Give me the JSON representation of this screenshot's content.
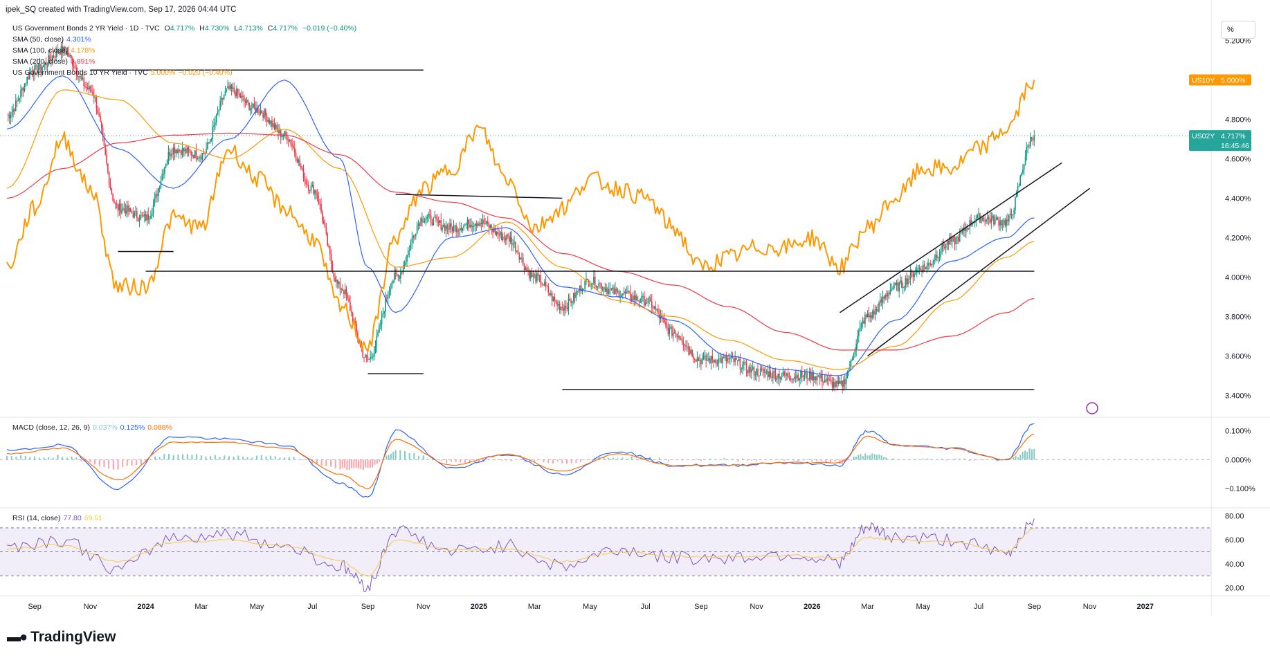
{
  "header": {
    "attribution": "ipek_SQ created with TradingView.com, Sep 17, 2026 04:44 UTC",
    "main_symbol": "US Government Bonds 2 YR Yield · 1D · TVC",
    "ohlc": {
      "o_label": "O",
      "o": "4.717%",
      "h_label": "H",
      "h": "4.730%",
      "l_label": "L",
      "l": "4.713%",
      "c_label": "C",
      "c": "4.717%",
      "change": "−0.019 (−0.40%)"
    }
  },
  "legend": [
    {
      "label": "SMA (50, close)",
      "value": "4.301%",
      "color": "#2962ff"
    },
    {
      "label": "SMA (100, close)",
      "value": "4.178%",
      "color": "#ff9800"
    },
    {
      "label": "SMA (200, close)",
      "value": "3.891%",
      "color": "#f23645"
    },
    {
      "label": "US Government Bonds 10 YR Yield · TVC",
      "value": "5.000%",
      "change": "−0.020 (−0.40%)",
      "color": "#ff9800"
    }
  ],
  "scale_button": "%",
  "price_badges": [
    {
      "symbol": "US10Y",
      "value": "5.000%",
      "color": "#ff9800"
    },
    {
      "symbol": "US02Y",
      "value": "4.717%",
      "countdown": "16:45:46",
      "color": "#26a69a"
    }
  ],
  "macd_legend": {
    "label": "MACD (close, 12, 26, 9)",
    "values": [
      "0.037%",
      "0.125%",
      "0.088%"
    ],
    "colors": [
      "#80cbc4",
      "#2962ff",
      "#ff6d00"
    ]
  },
  "rsi_legend": {
    "label": "RSI (14, close)",
    "values": [
      "77.80",
      "69.51"
    ],
    "colors": [
      "#7e57c2",
      "#f7c844"
    ]
  },
  "logo_text": "TradingView",
  "chart_data": [
    {
      "type": "line",
      "pane": "price",
      "ylim": [
        3.3,
        5.3
      ],
      "y_unit": "%",
      "y_ticks": [
        "5.200%",
        "5.000%",
        "4.800%",
        "4.600%",
        "4.400%",
        "4.200%",
        "4.000%",
        "3.800%",
        "3.600%",
        "3.400%"
      ],
      "x_ticks": [
        "Sep",
        "Nov",
        "2024",
        "Mar",
        "May",
        "Jul",
        "Sep",
        "Nov",
        "2025",
        "Mar",
        "May",
        "Jul",
        "Sep",
        "Nov",
        "2026",
        "Mar",
        "May",
        "Jul",
        "Sep",
        "Nov",
        "2027"
      ],
      "series": [
        {
          "name": "US Government Bonds 2 YR Yield",
          "style": "candles",
          "x": [
            "2023-08",
            "2023-09",
            "2023-10",
            "2023-11",
            "2023-12",
            "2024-01",
            "2024-02",
            "2024-03",
            "2024-04",
            "2024-05",
            "2024-06",
            "2024-07",
            "2024-08",
            "2024-09",
            "2024-10",
            "2024-11",
            "2024-12",
            "2025-01",
            "2025-02",
            "2025-03",
            "2025-04",
            "2025-05",
            "2025-06",
            "2025-07",
            "2025-08",
            "2025-09",
            "2025-10",
            "2025-11",
            "2025-12",
            "2026-01",
            "2026-02",
            "2026-03",
            "2026-04",
            "2026-05",
            "2026-06",
            "2026-07",
            "2026-08",
            "2026-09"
          ],
          "values": [
            4.82,
            5.05,
            5.15,
            4.95,
            4.35,
            4.3,
            4.65,
            4.62,
            4.95,
            4.85,
            4.72,
            4.45,
            3.95,
            3.58,
            4.0,
            4.3,
            4.25,
            4.28,
            4.2,
            4.0,
            3.85,
            3.98,
            3.92,
            3.88,
            3.72,
            3.58,
            3.58,
            3.52,
            3.5,
            3.5,
            3.45,
            3.8,
            3.95,
            4.05,
            4.18,
            4.3,
            4.28,
            4.72
          ]
        },
        {
          "name": "SMA (50, close)",
          "color": "#2962ff",
          "x": [
            "2023-08",
            "2023-10",
            "2023-12",
            "2024-02",
            "2024-04",
            "2024-06",
            "2024-08",
            "2024-09",
            "2024-10",
            "2024-12",
            "2025-02",
            "2025-04",
            "2025-06",
            "2025-08",
            "2025-10",
            "2025-12",
            "2026-02",
            "2026-04",
            "2026-06",
            "2026-08",
            "2026-09"
          ],
          "values": [
            4.75,
            5.02,
            4.65,
            4.45,
            4.7,
            5.0,
            4.6,
            4.05,
            3.82,
            4.2,
            4.25,
            3.95,
            3.9,
            3.78,
            3.6,
            3.53,
            3.5,
            3.78,
            4.08,
            4.2,
            4.3
          ]
        },
        {
          "name": "SMA (100, close)",
          "color": "#ff9800",
          "x": [
            "2023-08",
            "2023-10",
            "2023-12",
            "2024-02",
            "2024-04",
            "2024-06",
            "2024-08",
            "2024-10",
            "2024-12",
            "2025-02",
            "2025-04",
            "2025-06",
            "2025-08",
            "2025-10",
            "2025-12",
            "2026-02",
            "2026-04",
            "2026-06",
            "2026-08",
            "2026-09"
          ],
          "values": [
            4.45,
            4.95,
            4.9,
            4.68,
            4.6,
            4.75,
            4.55,
            4.05,
            4.1,
            4.28,
            4.05,
            3.88,
            3.8,
            3.68,
            3.58,
            3.53,
            3.65,
            3.88,
            4.1,
            4.18
          ]
        },
        {
          "name": "SMA (200, close)",
          "color": "#f23645",
          "x": [
            "2023-08",
            "2023-10",
            "2023-12",
            "2024-02",
            "2024-04",
            "2024-06",
            "2024-08",
            "2024-10",
            "2024-12",
            "2025-02",
            "2025-04",
            "2025-06",
            "2025-08",
            "2025-10",
            "2025-12",
            "2026-02",
            "2026-04",
            "2026-06",
            "2026-08",
            "2026-09"
          ],
          "values": [
            4.4,
            4.55,
            4.68,
            4.72,
            4.73,
            4.72,
            4.62,
            4.43,
            4.38,
            4.3,
            4.12,
            4.03,
            3.96,
            3.85,
            3.72,
            3.63,
            3.63,
            3.7,
            3.82,
            3.891
          ]
        },
        {
          "name": "US Government Bonds 10 YR Yield",
          "color": "#ff9800",
          "x": [
            "2023-08",
            "2023-09",
            "2023-10",
            "2023-11",
            "2023-12",
            "2024-01",
            "2024-02",
            "2024-03",
            "2024-04",
            "2024-05",
            "2024-06",
            "2024-07",
            "2024-08",
            "2024-09",
            "2024-10",
            "2024-11",
            "2024-12",
            "2025-01",
            "2025-02",
            "2025-03",
            "2025-04",
            "2025-05",
            "2025-06",
            "2025-07",
            "2025-08",
            "2025-09",
            "2025-10",
            "2025-11",
            "2025-12",
            "2026-01",
            "2026-02",
            "2026-03",
            "2026-04",
            "2026-05",
            "2026-06",
            "2026-07",
            "2026-08",
            "2026-09"
          ],
          "values": [
            4.05,
            4.35,
            4.7,
            4.45,
            3.95,
            3.95,
            4.3,
            4.25,
            4.65,
            4.5,
            4.35,
            4.2,
            3.85,
            3.65,
            4.2,
            4.45,
            4.55,
            4.75,
            4.5,
            4.25,
            4.35,
            4.5,
            4.45,
            4.4,
            4.25,
            4.05,
            4.1,
            4.15,
            4.15,
            4.2,
            4.05,
            4.25,
            4.4,
            4.55,
            4.55,
            4.65,
            4.75,
            5.0
          ]
        }
      ]
    },
    {
      "type": "bar",
      "pane": "macd",
      "ylim": [
        -0.16,
        0.14
      ],
      "y_unit": "%",
      "y_ticks": [
        "0.100%",
        "0.000%",
        "−0.100%"
      ],
      "x": [
        "2023-08",
        "2023-10",
        "2023-12",
        "2024-02",
        "2024-04",
        "2024-06",
        "2024-08",
        "2024-09",
        "2024-10",
        "2024-12",
        "2025-02",
        "2025-04",
        "2025-06",
        "2025-08",
        "2025-10",
        "2025-12",
        "2026-02",
        "2026-03",
        "2026-04",
        "2026-06",
        "2026-08",
        "2026-09"
      ],
      "series": [
        {
          "name": "MACD",
          "color": "#2962ff",
          "values": [
            0.03,
            0.05,
            -0.1,
            0.08,
            0.07,
            0.05,
            -0.08,
            -0.13,
            0.1,
            -0.03,
            0.02,
            -0.05,
            0.03,
            -0.02,
            -0.02,
            -0.01,
            -0.02,
            0.1,
            0.05,
            0.04,
            0.0,
            0.125
          ]
        },
        {
          "name": "Signal",
          "color": "#ff6d00",
          "values": [
            0.02,
            0.04,
            -0.07,
            0.06,
            0.06,
            0.04,
            -0.05,
            -0.1,
            0.07,
            -0.02,
            0.02,
            -0.04,
            0.02,
            -0.02,
            -0.02,
            -0.01,
            -0.01,
            0.08,
            0.05,
            0.04,
            0.0,
            0.088
          ]
        }
      ]
    },
    {
      "type": "line",
      "pane": "rsi",
      "ylim": [
        15,
        85
      ],
      "y_ticks": [
        "80.00",
        "60.00",
        "40.00",
        "20.00"
      ],
      "bands": [
        70,
        50,
        30
      ],
      "x": [
        "2023-08",
        "2023-10",
        "2023-12",
        "2024-02",
        "2024-04",
        "2024-06",
        "2024-08",
        "2024-09",
        "2024-10",
        "2024-12",
        "2025-02",
        "2025-04",
        "2025-06",
        "2025-08",
        "2025-10",
        "2025-12",
        "2026-02",
        "2026-03",
        "2026-04",
        "2026-06",
        "2026-08",
        "2026-09"
      ],
      "series": [
        {
          "name": "RSI",
          "color": "#7e57c2",
          "values": [
            55,
            60,
            35,
            62,
            65,
            55,
            38,
            22,
            68,
            50,
            55,
            38,
            52,
            45,
            45,
            48,
            42,
            70,
            62,
            60,
            48,
            77.8
          ]
        },
        {
          "name": "RSI MA",
          "color": "#f7c844",
          "values": [
            52,
            56,
            42,
            58,
            60,
            55,
            42,
            30,
            60,
            52,
            52,
            42,
            50,
            46,
            46,
            47,
            45,
            62,
            60,
            58,
            50,
            69.51
          ]
        }
      ]
    }
  ]
}
